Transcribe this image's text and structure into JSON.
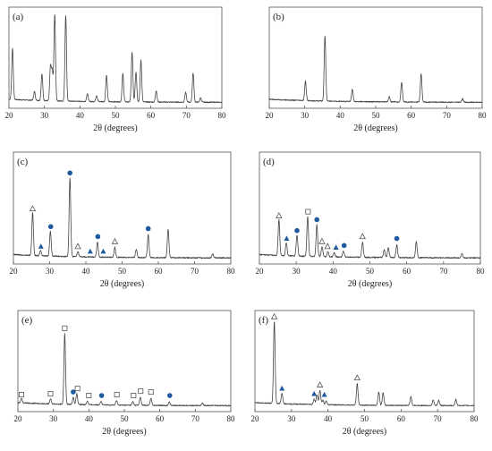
{
  "chart_data": [
    {
      "type": "line",
      "panel": "(a)",
      "xlabel": "2θ (degrees)",
      "xlim": [
        20,
        80
      ],
      "xticks": [
        "20",
        "30",
        "40",
        "50",
        "60",
        "70",
        "80"
      ],
      "peaks": [
        {
          "x": 21.0,
          "h": 0.58
        },
        {
          "x": 27.2,
          "h": 0.1
        },
        {
          "x": 29.3,
          "h": 0.3
        },
        {
          "x": 31.7,
          "h": 0.38
        },
        {
          "x": 32.2,
          "h": 0.33
        },
        {
          "x": 32.9,
          "h": 0.98
        },
        {
          "x": 36.0,
          "h": 0.97
        },
        {
          "x": 42.1,
          "h": 0.09
        },
        {
          "x": 44.7,
          "h": 0.07
        },
        {
          "x": 47.5,
          "h": 0.3
        },
        {
          "x": 52.1,
          "h": 0.32
        },
        {
          "x": 54.7,
          "h": 0.56
        },
        {
          "x": 55.8,
          "h": 0.34
        },
        {
          "x": 57.2,
          "h": 0.47
        },
        {
          "x": 61.5,
          "h": 0.13
        },
        {
          "x": 69.8,
          "h": 0.11
        },
        {
          "x": 71.9,
          "h": 0.33
        },
        {
          "x": 74.0,
          "h": 0.05
        }
      ],
      "markers": []
    },
    {
      "type": "line",
      "panel": "(b)",
      "xlabel": "2θ (degrees)",
      "xlim": [
        20,
        80
      ],
      "xticks": [
        "20",
        "30",
        "40",
        "50",
        "60",
        "70",
        "80"
      ],
      "peaks": [
        {
          "x": 30.2,
          "h": 0.22
        },
        {
          "x": 35.7,
          "h": 0.74
        },
        {
          "x": 43.4,
          "h": 0.14
        },
        {
          "x": 53.8,
          "h": 0.06
        },
        {
          "x": 57.3,
          "h": 0.22
        },
        {
          "x": 62.8,
          "h": 0.32
        },
        {
          "x": 74.5,
          "h": 0.04
        }
      ],
      "markers": []
    },
    {
      "type": "line",
      "panel": "(c)",
      "xlabel": "2θ (degrees)",
      "xlim": [
        20,
        80
      ],
      "xticks": [
        "20",
        "30",
        "40",
        "50",
        "60",
        "70",
        "80"
      ],
      "peaks": [
        {
          "x": 25.3,
          "h": 0.43
        },
        {
          "x": 27.5,
          "h": 0.05
        },
        {
          "x": 30.2,
          "h": 0.25
        },
        {
          "x": 35.6,
          "h": 0.79
        },
        {
          "x": 37.8,
          "h": 0.05
        },
        {
          "x": 43.2,
          "h": 0.15
        },
        {
          "x": 48.0,
          "h": 0.1
        },
        {
          "x": 53.9,
          "h": 0.08
        },
        {
          "x": 57.2,
          "h": 0.23
        },
        {
          "x": 62.7,
          "h": 0.29
        },
        {
          "x": 75.0,
          "h": 0.04
        }
      ],
      "markers": [
        {
          "x": 25.3,
          "s": "triangle-open"
        },
        {
          "x": 27.6,
          "s": "triangle-filled"
        },
        {
          "x": 30.3,
          "s": "circle"
        },
        {
          "x": 35.6,
          "s": "circle"
        },
        {
          "x": 37.8,
          "s": "triangle-open"
        },
        {
          "x": 41.2,
          "s": "triangle-filled"
        },
        {
          "x": 43.3,
          "s": "circle"
        },
        {
          "x": 44.8,
          "s": "triangle-filled"
        },
        {
          "x": 48.0,
          "s": "triangle-open"
        },
        {
          "x": 57.2,
          "s": "circle"
        }
      ]
    },
    {
      "type": "line",
      "panel": "(d)",
      "xlabel": "2θ (degrees)",
      "xlim": [
        20,
        80
      ],
      "xticks": [
        "20",
        "30",
        "40",
        "50",
        "60",
        "70",
        "80"
      ],
      "peaks": [
        {
          "x": 25.3,
          "h": 0.36
        },
        {
          "x": 27.3,
          "h": 0.13
        },
        {
          "x": 30.2,
          "h": 0.21
        },
        {
          "x": 33.1,
          "h": 0.4
        },
        {
          "x": 35.6,
          "h": 0.32
        },
        {
          "x": 37.0,
          "h": 0.1
        },
        {
          "x": 38.6,
          "h": 0.05
        },
        {
          "x": 40.3,
          "h": 0.04
        },
        {
          "x": 42.8,
          "h": 0.06
        },
        {
          "x": 48.0,
          "h": 0.15
        },
        {
          "x": 53.9,
          "h": 0.08
        },
        {
          "x": 55.0,
          "h": 0.1
        },
        {
          "x": 57.3,
          "h": 0.13
        },
        {
          "x": 62.6,
          "h": 0.16
        },
        {
          "x": 75.0,
          "h": 0.04
        }
      ],
      "markers": [
        {
          "x": 25.3,
          "s": "triangle-open"
        },
        {
          "x": 27.4,
          "s": "triangle-filled"
        },
        {
          "x": 30.2,
          "s": "circle"
        },
        {
          "x": 33.2,
          "s": "square"
        },
        {
          "x": 35.6,
          "s": "circle"
        },
        {
          "x": 37.0,
          "s": "triangle-open"
        },
        {
          "x": 38.5,
          "s": "triangle-open"
        },
        {
          "x": 40.8,
          "s": "triangle-filled"
        },
        {
          "x": 43.0,
          "s": "circle"
        },
        {
          "x": 48.0,
          "s": "triangle-open"
        },
        {
          "x": 57.3,
          "s": "circle"
        }
      ]
    },
    {
      "type": "line",
      "panel": "(e)",
      "xlabel": "2θ (degrees)",
      "xlim": [
        20,
        80
      ],
      "xticks": [
        "20",
        "30",
        "40",
        "50",
        "60",
        "70",
        "80"
      ],
      "peaks": [
        {
          "x": 21.0,
          "h": 0.05
        },
        {
          "x": 29.2,
          "h": 0.06
        },
        {
          "x": 33.2,
          "h": 0.8
        },
        {
          "x": 35.6,
          "h": 0.08
        },
        {
          "x": 36.6,
          "h": 0.12
        },
        {
          "x": 39.6,
          "h": 0.04
        },
        {
          "x": 43.4,
          "h": 0.04
        },
        {
          "x": 47.8,
          "h": 0.05
        },
        {
          "x": 52.4,
          "h": 0.04
        },
        {
          "x": 54.5,
          "h": 0.09
        },
        {
          "x": 57.5,
          "h": 0.08
        },
        {
          "x": 62.7,
          "h": 0.04
        },
        {
          "x": 72.0,
          "h": 0.03
        }
      ],
      "markers": [
        {
          "x": 21.0,
          "s": "square"
        },
        {
          "x": 29.2,
          "s": "square"
        },
        {
          "x": 33.2,
          "s": "square"
        },
        {
          "x": 35.6,
          "s": "circle"
        },
        {
          "x": 36.8,
          "s": "square"
        },
        {
          "x": 40.0,
          "s": "square"
        },
        {
          "x": 43.6,
          "s": "circle"
        },
        {
          "x": 47.9,
          "s": "square"
        },
        {
          "x": 52.6,
          "s": "square"
        },
        {
          "x": 54.6,
          "s": "square"
        },
        {
          "x": 57.5,
          "s": "square"
        },
        {
          "x": 62.8,
          "s": "circle"
        }
      ]
    },
    {
      "type": "line",
      "panel": "(f)",
      "xlabel": "2θ (degrees)",
      "xlim": [
        20,
        80
      ],
      "xticks": [
        "20",
        "30",
        "40",
        "50",
        "60",
        "70",
        "80"
      ],
      "peaks": [
        {
          "x": 25.3,
          "h": 0.93
        },
        {
          "x": 27.4,
          "h": 0.12
        },
        {
          "x": 36.2,
          "h": 0.06
        },
        {
          "x": 37.0,
          "h": 0.11
        },
        {
          "x": 37.8,
          "h": 0.16
        },
        {
          "x": 38.6,
          "h": 0.05
        },
        {
          "x": 39.5,
          "h": 0.04
        },
        {
          "x": 48.0,
          "h": 0.24
        },
        {
          "x": 53.9,
          "h": 0.15
        },
        {
          "x": 55.1,
          "h": 0.14
        },
        {
          "x": 62.7,
          "h": 0.1
        },
        {
          "x": 68.8,
          "h": 0.06
        },
        {
          "x": 70.3,
          "h": 0.06
        },
        {
          "x": 75.0,
          "h": 0.07
        }
      ],
      "markers": [
        {
          "x": 25.3,
          "s": "triangle-open"
        },
        {
          "x": 27.4,
          "s": "triangle-filled"
        },
        {
          "x": 36.2,
          "s": "triangle-filled"
        },
        {
          "x": 37.8,
          "s": "triangle-open"
        },
        {
          "x": 39.0,
          "s": "triangle-filled"
        },
        {
          "x": 48.0,
          "s": "triangle-open"
        }
      ]
    }
  ]
}
